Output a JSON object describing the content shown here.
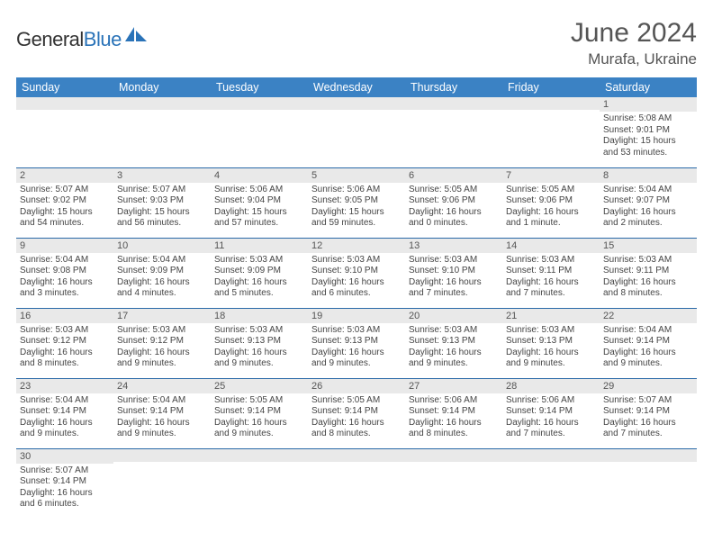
{
  "brand": {
    "name1": "General",
    "name2": "Blue"
  },
  "title": "June 2024",
  "location": "Murafa, Ukraine",
  "colors": {
    "header_bg": "#3b82c4",
    "header_fg": "#ffffff",
    "daynum_bg": "#e9e9e9",
    "border": "#2a6aa8",
    "brand_blue": "#2a73b8"
  },
  "weekdays": [
    "Sunday",
    "Monday",
    "Tuesday",
    "Wednesday",
    "Thursday",
    "Friday",
    "Saturday"
  ],
  "rows": [
    [
      {
        "n": "",
        "sr": "",
        "ss": "",
        "dl": ""
      },
      {
        "n": "",
        "sr": "",
        "ss": "",
        "dl": ""
      },
      {
        "n": "",
        "sr": "",
        "ss": "",
        "dl": ""
      },
      {
        "n": "",
        "sr": "",
        "ss": "",
        "dl": ""
      },
      {
        "n": "",
        "sr": "",
        "ss": "",
        "dl": ""
      },
      {
        "n": "",
        "sr": "",
        "ss": "",
        "dl": ""
      },
      {
        "n": "1",
        "sr": "Sunrise: 5:08 AM",
        "ss": "Sunset: 9:01 PM",
        "dl": "Daylight: 15 hours and 53 minutes."
      }
    ],
    [
      {
        "n": "2",
        "sr": "Sunrise: 5:07 AM",
        "ss": "Sunset: 9:02 PM",
        "dl": "Daylight: 15 hours and 54 minutes."
      },
      {
        "n": "3",
        "sr": "Sunrise: 5:07 AM",
        "ss": "Sunset: 9:03 PM",
        "dl": "Daylight: 15 hours and 56 minutes."
      },
      {
        "n": "4",
        "sr": "Sunrise: 5:06 AM",
        "ss": "Sunset: 9:04 PM",
        "dl": "Daylight: 15 hours and 57 minutes."
      },
      {
        "n": "5",
        "sr": "Sunrise: 5:06 AM",
        "ss": "Sunset: 9:05 PM",
        "dl": "Daylight: 15 hours and 59 minutes."
      },
      {
        "n": "6",
        "sr": "Sunrise: 5:05 AM",
        "ss": "Sunset: 9:06 PM",
        "dl": "Daylight: 16 hours and 0 minutes."
      },
      {
        "n": "7",
        "sr": "Sunrise: 5:05 AM",
        "ss": "Sunset: 9:06 PM",
        "dl": "Daylight: 16 hours and 1 minute."
      },
      {
        "n": "8",
        "sr": "Sunrise: 5:04 AM",
        "ss": "Sunset: 9:07 PM",
        "dl": "Daylight: 16 hours and 2 minutes."
      }
    ],
    [
      {
        "n": "9",
        "sr": "Sunrise: 5:04 AM",
        "ss": "Sunset: 9:08 PM",
        "dl": "Daylight: 16 hours and 3 minutes."
      },
      {
        "n": "10",
        "sr": "Sunrise: 5:04 AM",
        "ss": "Sunset: 9:09 PM",
        "dl": "Daylight: 16 hours and 4 minutes."
      },
      {
        "n": "11",
        "sr": "Sunrise: 5:03 AM",
        "ss": "Sunset: 9:09 PM",
        "dl": "Daylight: 16 hours and 5 minutes."
      },
      {
        "n": "12",
        "sr": "Sunrise: 5:03 AM",
        "ss": "Sunset: 9:10 PM",
        "dl": "Daylight: 16 hours and 6 minutes."
      },
      {
        "n": "13",
        "sr": "Sunrise: 5:03 AM",
        "ss": "Sunset: 9:10 PM",
        "dl": "Daylight: 16 hours and 7 minutes."
      },
      {
        "n": "14",
        "sr": "Sunrise: 5:03 AM",
        "ss": "Sunset: 9:11 PM",
        "dl": "Daylight: 16 hours and 7 minutes."
      },
      {
        "n": "15",
        "sr": "Sunrise: 5:03 AM",
        "ss": "Sunset: 9:11 PM",
        "dl": "Daylight: 16 hours and 8 minutes."
      }
    ],
    [
      {
        "n": "16",
        "sr": "Sunrise: 5:03 AM",
        "ss": "Sunset: 9:12 PM",
        "dl": "Daylight: 16 hours and 8 minutes."
      },
      {
        "n": "17",
        "sr": "Sunrise: 5:03 AM",
        "ss": "Sunset: 9:12 PM",
        "dl": "Daylight: 16 hours and 9 minutes."
      },
      {
        "n": "18",
        "sr": "Sunrise: 5:03 AM",
        "ss": "Sunset: 9:13 PM",
        "dl": "Daylight: 16 hours and 9 minutes."
      },
      {
        "n": "19",
        "sr": "Sunrise: 5:03 AM",
        "ss": "Sunset: 9:13 PM",
        "dl": "Daylight: 16 hours and 9 minutes."
      },
      {
        "n": "20",
        "sr": "Sunrise: 5:03 AM",
        "ss": "Sunset: 9:13 PM",
        "dl": "Daylight: 16 hours and 9 minutes."
      },
      {
        "n": "21",
        "sr": "Sunrise: 5:03 AM",
        "ss": "Sunset: 9:13 PM",
        "dl": "Daylight: 16 hours and 9 minutes."
      },
      {
        "n": "22",
        "sr": "Sunrise: 5:04 AM",
        "ss": "Sunset: 9:14 PM",
        "dl": "Daylight: 16 hours and 9 minutes."
      }
    ],
    [
      {
        "n": "23",
        "sr": "Sunrise: 5:04 AM",
        "ss": "Sunset: 9:14 PM",
        "dl": "Daylight: 16 hours and 9 minutes."
      },
      {
        "n": "24",
        "sr": "Sunrise: 5:04 AM",
        "ss": "Sunset: 9:14 PM",
        "dl": "Daylight: 16 hours and 9 minutes."
      },
      {
        "n": "25",
        "sr": "Sunrise: 5:05 AM",
        "ss": "Sunset: 9:14 PM",
        "dl": "Daylight: 16 hours and 9 minutes."
      },
      {
        "n": "26",
        "sr": "Sunrise: 5:05 AM",
        "ss": "Sunset: 9:14 PM",
        "dl": "Daylight: 16 hours and 8 minutes."
      },
      {
        "n": "27",
        "sr": "Sunrise: 5:06 AM",
        "ss": "Sunset: 9:14 PM",
        "dl": "Daylight: 16 hours and 8 minutes."
      },
      {
        "n": "28",
        "sr": "Sunrise: 5:06 AM",
        "ss": "Sunset: 9:14 PM",
        "dl": "Daylight: 16 hours and 7 minutes."
      },
      {
        "n": "29",
        "sr": "Sunrise: 5:07 AM",
        "ss": "Sunset: 9:14 PM",
        "dl": "Daylight: 16 hours and 7 minutes."
      }
    ],
    [
      {
        "n": "30",
        "sr": "Sunrise: 5:07 AM",
        "ss": "Sunset: 9:14 PM",
        "dl": "Daylight: 16 hours and 6 minutes."
      },
      {
        "n": "",
        "sr": "",
        "ss": "",
        "dl": ""
      },
      {
        "n": "",
        "sr": "",
        "ss": "",
        "dl": ""
      },
      {
        "n": "",
        "sr": "",
        "ss": "",
        "dl": ""
      },
      {
        "n": "",
        "sr": "",
        "ss": "",
        "dl": ""
      },
      {
        "n": "",
        "sr": "",
        "ss": "",
        "dl": ""
      },
      {
        "n": "",
        "sr": "",
        "ss": "",
        "dl": ""
      }
    ]
  ]
}
